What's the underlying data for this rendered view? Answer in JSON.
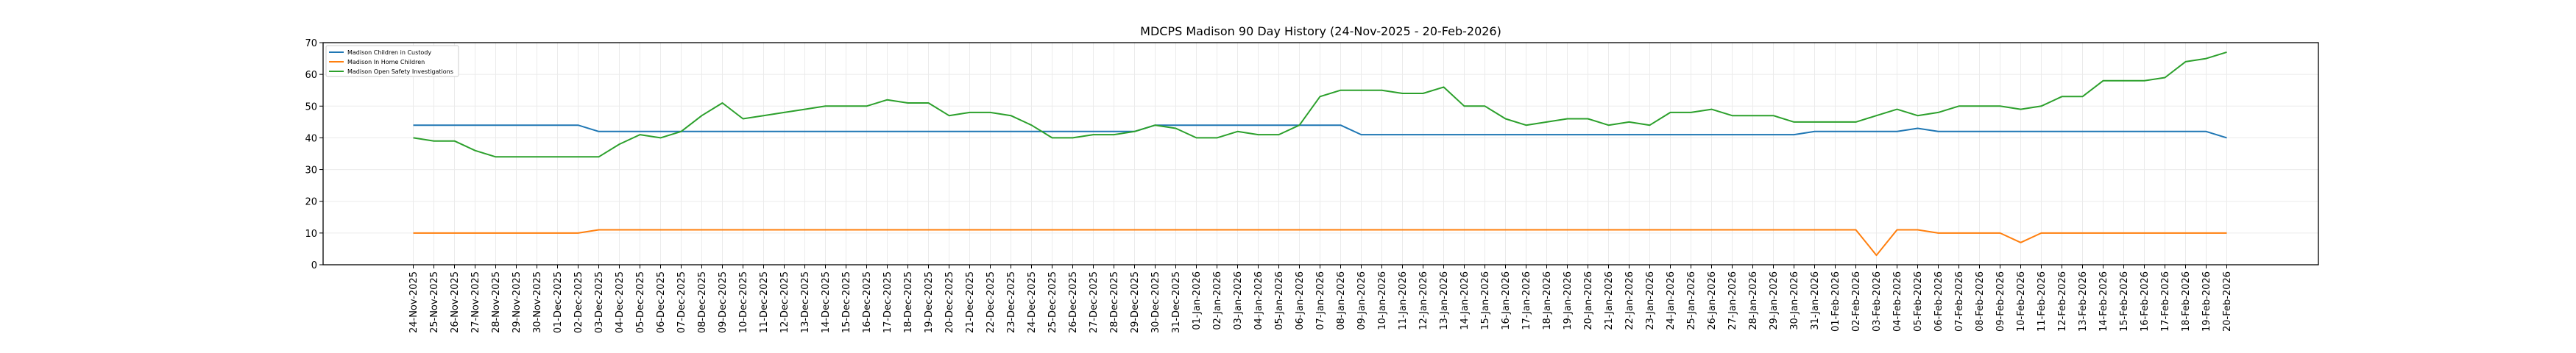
{
  "chart_data": {
    "type": "line",
    "title": "MDCPS Madison 90 Day History (24-Nov-2025 - 20-Feb-2026)",
    "xlabel": "",
    "ylabel": "",
    "ylim": [
      0,
      70
    ],
    "yticks": [
      0,
      10,
      20,
      30,
      40,
      50,
      60,
      70
    ],
    "grid": true,
    "legend_position": "top-left",
    "categories": [
      "24-Nov-2025",
      "25-Nov-2025",
      "26-Nov-2025",
      "27-Nov-2025",
      "28-Nov-2025",
      "29-Nov-2025",
      "30-Nov-2025",
      "01-Dec-2025",
      "02-Dec-2025",
      "03-Dec-2025",
      "04-Dec-2025",
      "05-Dec-2025",
      "06-Dec-2025",
      "07-Dec-2025",
      "08-Dec-2025",
      "09-Dec-2025",
      "10-Dec-2025",
      "11-Dec-2025",
      "12-Dec-2025",
      "13-Dec-2025",
      "14-Dec-2025",
      "15-Dec-2025",
      "16-Dec-2025",
      "17-Dec-2025",
      "18-Dec-2025",
      "19-Dec-2025",
      "20-Dec-2025",
      "21-Dec-2025",
      "22-Dec-2025",
      "23-Dec-2025",
      "24-Dec-2025",
      "25-Dec-2025",
      "26-Dec-2025",
      "27-Dec-2025",
      "28-Dec-2025",
      "29-Dec-2025",
      "30-Dec-2025",
      "31-Dec-2025",
      "01-Jan-2026",
      "02-Jan-2026",
      "03-Jan-2026",
      "04-Jan-2026",
      "05-Jan-2026",
      "06-Jan-2026",
      "07-Jan-2026",
      "08-Jan-2026",
      "09-Jan-2026",
      "10-Jan-2026",
      "11-Jan-2026",
      "12-Jan-2026",
      "13-Jan-2026",
      "14-Jan-2026",
      "15-Jan-2026",
      "16-Jan-2026",
      "17-Jan-2026",
      "18-Jan-2026",
      "19-Jan-2026",
      "20-Jan-2026",
      "21-Jan-2026",
      "22-Jan-2026",
      "23-Jan-2026",
      "24-Jan-2026",
      "25-Jan-2026",
      "26-Jan-2026",
      "27-Jan-2026",
      "28-Jan-2026",
      "29-Jan-2026",
      "30-Jan-2026",
      "31-Jan-2026",
      "01-Feb-2026",
      "02-Feb-2026",
      "03-Feb-2026",
      "04-Feb-2026",
      "05-Feb-2026",
      "06-Feb-2026",
      "07-Feb-2026",
      "08-Feb-2026",
      "09-Feb-2026",
      "10-Feb-2026",
      "11-Feb-2026",
      "12-Feb-2026",
      "13-Feb-2026",
      "14-Feb-2026",
      "15-Feb-2026",
      "16-Feb-2026",
      "17-Feb-2026",
      "18-Feb-2026",
      "19-Feb-2026",
      "20-Feb-2026"
    ],
    "series": [
      {
        "name": "Madison Children in Custody",
        "color": "#1f77b4",
        "values": [
          44,
          44,
          44,
          44,
          44,
          44,
          44,
          44,
          44,
          42,
          42,
          42,
          42,
          42,
          42,
          42,
          42,
          42,
          42,
          42,
          42,
          42,
          42,
          42,
          42,
          42,
          42,
          42,
          42,
          42,
          42,
          42,
          42,
          42,
          42,
          42,
          44,
          44,
          44,
          44,
          44,
          44,
          44,
          44,
          44,
          44,
          41,
          41,
          41,
          41,
          41,
          41,
          41,
          41,
          41,
          41,
          41,
          41,
          41,
          41,
          41,
          41,
          41,
          41,
          41,
          41,
          41,
          41,
          42,
          42,
          42,
          42,
          42,
          43,
          42,
          42,
          42,
          42,
          42,
          42,
          42,
          42,
          42,
          42,
          42,
          42,
          42,
          42,
          40
        ]
      },
      {
        "name": "Madison In Home Children",
        "color": "#ff7f0e",
        "values": [
          10,
          10,
          10,
          10,
          10,
          10,
          10,
          10,
          10,
          11,
          11,
          11,
          11,
          11,
          11,
          11,
          11,
          11,
          11,
          11,
          11,
          11,
          11,
          11,
          11,
          11,
          11,
          11,
          11,
          11,
          11,
          11,
          11,
          11,
          11,
          11,
          11,
          11,
          11,
          11,
          11,
          11,
          11,
          11,
          11,
          11,
          11,
          11,
          11,
          11,
          11,
          11,
          11,
          11,
          11,
          11,
          11,
          11,
          11,
          11,
          11,
          11,
          11,
          11,
          11,
          11,
          11,
          11,
          11,
          11,
          11,
          3,
          11,
          11,
          10,
          10,
          10,
          10,
          7,
          10,
          10,
          10,
          10,
          10,
          10,
          10,
          10,
          10,
          10
        ]
      },
      {
        "name": "Madison Open Safety Investigations",
        "color": "#2ca02c",
        "values": [
          40,
          39,
          39,
          36,
          34,
          34,
          34,
          34,
          34,
          34,
          38,
          41,
          40,
          42,
          47,
          51,
          46,
          47,
          48,
          49,
          50,
          50,
          50,
          52,
          51,
          51,
          47,
          48,
          48,
          47,
          44,
          40,
          40,
          41,
          41,
          42,
          44,
          43,
          40,
          40,
          42,
          41,
          41,
          44,
          53,
          55,
          55,
          55,
          54,
          54,
          56,
          50,
          50,
          46,
          44,
          45,
          46,
          46,
          44,
          45,
          44,
          48,
          48,
          49,
          47,
          47,
          47,
          45,
          45,
          45,
          45,
          47,
          49,
          47,
          48,
          50,
          50,
          50,
          49,
          50,
          53,
          53,
          58,
          58,
          58,
          59,
          64,
          65,
          67
        ]
      }
    ]
  }
}
